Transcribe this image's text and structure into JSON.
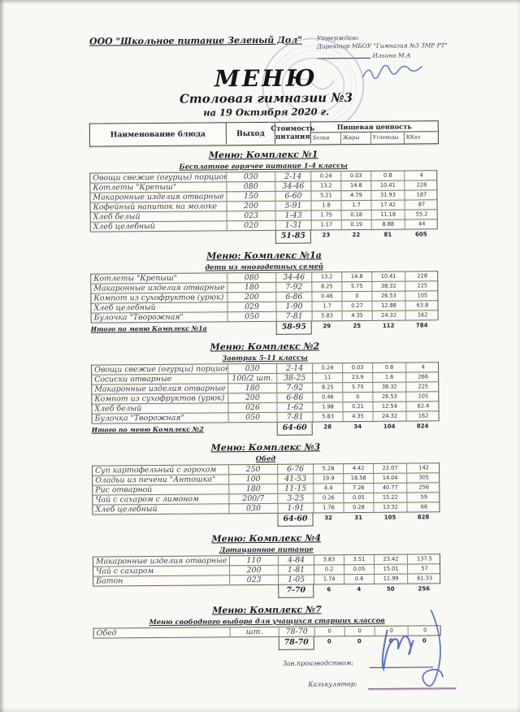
{
  "header": {
    "company": "ООО \"Школьное питание Зеленый Дол\"",
    "approve_line1": "Утверждаю:",
    "approve_line2": "Директор МБОУ \"Гимназия №3 ЗМР РТ\"",
    "approve_signatory": "Ильина М.А",
    "title": "МЕНЮ",
    "subtitle": "Столовая гимназии №3",
    "date_line": "на 19 Октября 2020 г."
  },
  "table_header": {
    "dish": "Наименование блюда",
    "output": "Выход",
    "cost_line1": "Стоимость",
    "cost_line2": "питания",
    "nutrition": "Пищевая ценность",
    "sub": [
      "Белки",
      "Жиры",
      "Углеводы",
      "ККал"
    ]
  },
  "sections": [
    {
      "title": "Меню: Комплекс №1",
      "subtitle": "Бесплатное горячее питание 1-4 классы",
      "rows": [
        [
          "Овощи свежие (огурцы) порционно",
          "030",
          "2-14",
          "0.24",
          "0.03",
          "0.8",
          "4"
        ],
        [
          "Котлеты \"Крепыш\"",
          "080",
          "34-46",
          "13.2",
          "14.8",
          "10.41",
          "228"
        ],
        [
          "Макаронные изделия отварные",
          "150",
          "6-60",
          "5.21",
          "4.79",
          "31.93",
          "187"
        ],
        [
          "Кофейный напиток на молоке",
          "200",
          "5-91",
          "1.8",
          "1.7",
          "17.42",
          "87"
        ],
        [
          "Хлеб белый",
          "023",
          "1-43",
          "1.75",
          "0.18",
          "11.18",
          "55.2"
        ],
        [
          "Хлеб целебный",
          "020",
          "1-31",
          "1.17",
          "0.19",
          "8.88",
          "44"
        ]
      ],
      "total_label": "",
      "totals": [
        "51-85",
        "23",
        "22",
        "81",
        "605"
      ]
    },
    {
      "title": "Меню: Комплекс №1а",
      "subtitle": "дети из многодетных семей",
      "rows": [
        [
          "Котлеты \"Крепыш\"",
          "080",
          "34-46",
          "13.2",
          "14.8",
          "10.41",
          "228"
        ],
        [
          "Макаронные изделия отварные",
          "180",
          "7-92",
          "8.25",
          "5.75",
          "38.32",
          "225"
        ],
        [
          "Компот из сухофруктов (урюк)",
          "200",
          "6-86",
          "0.46",
          "0",
          "26.53",
          "105"
        ],
        [
          "Хлеб целебный",
          "029",
          "1-90",
          "1.7",
          "0.27",
          "12.88",
          "63.8"
        ],
        [
          "Булочка \"Творожная\"",
          "050",
          "7-81",
          "5.83",
          "4.35",
          "24.32",
          "162"
        ]
      ],
      "total_label": "Итого по меню Комплекс №1а",
      "totals": [
        "58-95",
        "29",
        "25",
        "112",
        "784"
      ]
    },
    {
      "title": "Меню: Комплекс №2",
      "subtitle": "Завтрак 5-11 классы",
      "rows": [
        [
          "Овощи свежие (огурцы) порционно",
          "030",
          "2-14",
          "0.24",
          "0.03",
          "0.8",
          "4"
        ],
        [
          "Сосиски отварные",
          "100/2 шт.",
          "38-25",
          "11",
          "23.9",
          "1.6",
          "266"
        ],
        [
          "Макаронные изделия отварные",
          "180",
          "7-92",
          "8.25",
          "5.75",
          "38.32",
          "225"
        ],
        [
          "Компот из сухофруктов (урюк)",
          "200",
          "6-86",
          "0.46",
          "0",
          "26.53",
          "105"
        ],
        [
          "Хлеб белый",
          "026",
          "1-62",
          "1.98",
          "0.21",
          "12.54",
          "62.4"
        ],
        [
          "Булочка \"Творожная\"",
          "050",
          "7-81",
          "5.83",
          "4.35",
          "24.32",
          "162"
        ]
      ],
      "total_label": "Итого по меню Комплекс №2",
      "totals": [
        "64-60",
        "28",
        "34",
        "104",
        "824"
      ]
    },
    {
      "title": "Меню: Комплекс №3",
      "subtitle": "Обед",
      "rows": [
        [
          "Суп картофельный с горохом",
          "250",
          "6-76",
          "5.28",
          "4.42",
          "22.07",
          "142"
        ],
        [
          "Оладьи из печени \"Антошка\"",
          "100",
          "41-53",
          "19.9",
          "18.58",
          "14.04",
          "305"
        ],
        [
          "Рис отварной",
          "180",
          "11-15",
          "4.4",
          "7.26",
          "40.77",
          "256"
        ],
        [
          "Чай с сахаром с лимоном",
          "200/7",
          "3-25",
          "0.26",
          "0.05",
          "15.22",
          "59"
        ],
        [
          "Хлеб целебный",
          "030",
          "1-91",
          "1.76",
          "0.28",
          "13.32",
          "66"
        ]
      ],
      "total_label": "",
      "totals": [
        "64-60",
        "32",
        "31",
        "105",
        "828"
      ]
    },
    {
      "title": "Меню: Комплекс №4",
      "subtitle": "Дотационное питание",
      "rows": [
        [
          "Макаронные изделия отварные",
          "110",
          "4-84",
          "3.83",
          "3.51",
          "23.42",
          "137.5"
        ],
        [
          "Чай с сахаром",
          "200",
          "1-81",
          "0.2",
          "0.05",
          "15.01",
          "57"
        ],
        [
          "Батон",
          "023",
          "1-05",
          "1.74",
          "0.6",
          "11.99",
          "61.33"
        ]
      ],
      "total_label": "",
      "totals": [
        "7-70",
        "6",
        "4",
        "50",
        "256"
      ]
    },
    {
      "title": "Меню: Комплекс №7",
      "subtitle": "Меню свободного выбора для учащихся старших классов",
      "rows": [
        [
          "Обед",
          "шт.",
          "78-70",
          "0",
          "0",
          "0",
          "0"
        ]
      ],
      "total_label": "",
      "totals": [
        "78-70",
        "0",
        "0",
        "0",
        "0"
      ]
    }
  ],
  "footer": {
    "chef_label": "Зав.производством:",
    "calculator_label": "Калькулятор:"
  },
  "stamp_color": "#7f9cce",
  "ink_color": "#4a63c4"
}
